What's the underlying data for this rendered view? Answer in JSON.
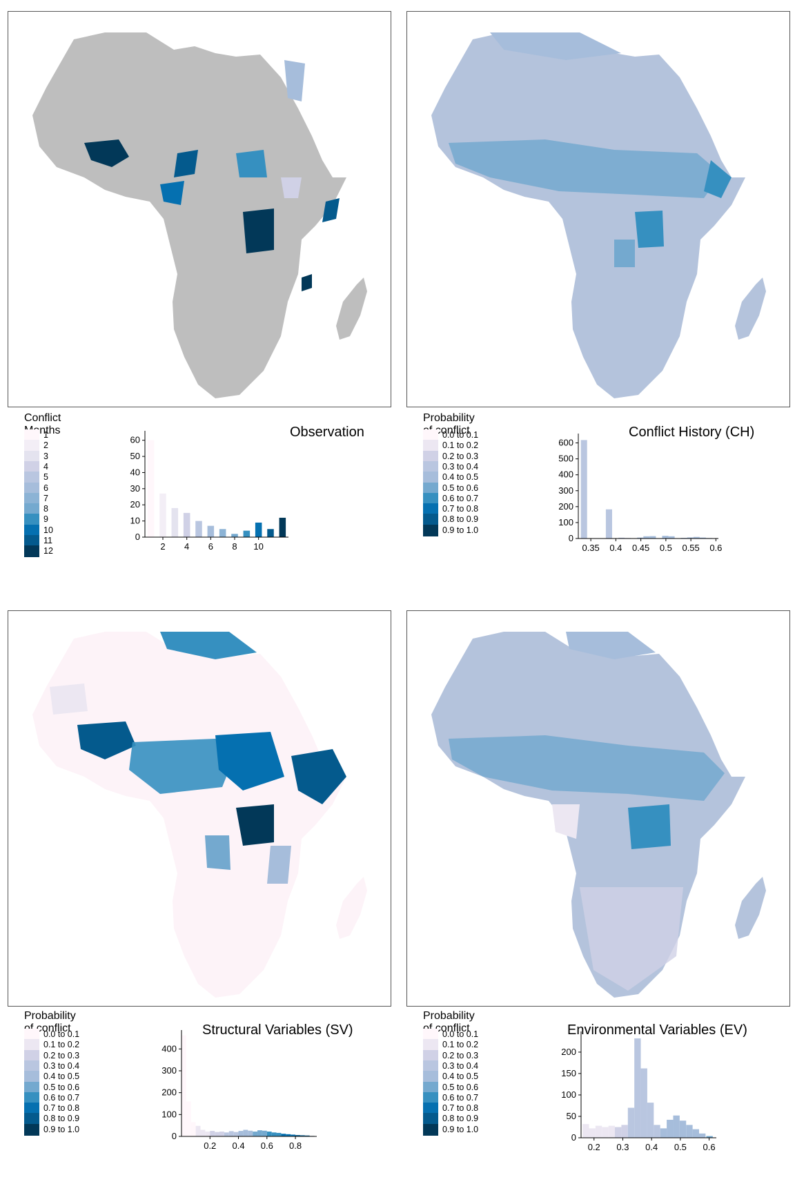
{
  "palette": [
    "#fff7fb",
    "#ece7f2",
    "#d0d1e6",
    "#a6bddb",
    "#74a9cf",
    "#3690c0",
    "#0570b0",
    "#045a8d",
    "#023858"
  ],
  "land_base_colors": {
    "observation": "#bebebe",
    "ch": "#b4c3dc",
    "sv": "#fdf3f8",
    "ev": "#b4c3dc"
  },
  "panels": [
    {
      "id": "observation",
      "legend_title": "Conflict Months",
      "legend_labels": [
        "1",
        "2",
        "3",
        "4",
        "5",
        "6",
        "7",
        "8",
        "9",
        "10",
        "11",
        "12"
      ],
      "legend_colors": [
        "#fff7fb",
        "#f3eef6",
        "#e4e3ef",
        "#d0d1e6",
        "#b9c6e0",
        "#a6bddb",
        "#8cb3d5",
        "#74a9cf",
        "#3690c0",
        "#0570b0",
        "#045a8d",
        "#023858"
      ]
    },
    {
      "id": "ch",
      "legend_title": "Probability of conflict",
      "legend_labels": [
        "0.0 to 0.1",
        "0.1 to 0.2",
        "0.2 to 0.3",
        "0.3 to 0.4",
        "0.4 to 0.5",
        "0.5 to 0.6",
        "0.6 to 0.7",
        "0.7 to 0.8",
        "0.8 to 0.9",
        "0.9 to 1.0"
      ],
      "legend_colors": [
        "#fff7fb",
        "#ece7f2",
        "#d0d1e6",
        "#b9c6e0",
        "#a6bddb",
        "#74a9cf",
        "#3690c0",
        "#0570b0",
        "#045a8d",
        "#023858"
      ]
    },
    {
      "id": "sv",
      "legend_title": "Probability of conflict",
      "legend_labels": [
        "0.0 to 0.1",
        "0.1 to 0.2",
        "0.2 to 0.3",
        "0.3 to 0.4",
        "0.4 to 0.5",
        "0.5 to 0.6",
        "0.6 to 0.7",
        "0.7 to 0.8",
        "0.8 to 0.9",
        "0.9 to 1.0"
      ],
      "legend_colors": [
        "#fff7fb",
        "#ece7f2",
        "#d0d1e6",
        "#b9c6e0",
        "#a6bddb",
        "#74a9cf",
        "#3690c0",
        "#0570b0",
        "#045a8d",
        "#023858"
      ]
    },
    {
      "id": "ev",
      "legend_title": "Probability of conflict",
      "legend_labels": [
        "0.0 to 0.1",
        "0.1 to 0.2",
        "0.2 to 0.3",
        "0.3 to 0.4",
        "0.4 to 0.5",
        "0.5 to 0.6",
        "0.6 to 0.7",
        "0.7 to 0.8",
        "0.8 to 0.9",
        "0.9 to 1.0"
      ],
      "legend_colors": [
        "#fff7fb",
        "#ece7f2",
        "#d0d1e6",
        "#b9c6e0",
        "#a6bddb",
        "#74a9cf",
        "#3690c0",
        "#0570b0",
        "#045a8d",
        "#023858"
      ]
    }
  ],
  "chart_data": [
    {
      "id": "observation",
      "type": "bar",
      "title": "Observation",
      "xlabel": "",
      "ylabel": "",
      "x": [
        1,
        2,
        3,
        4,
        5,
        6,
        7,
        8,
        9,
        10,
        11,
        12
      ],
      "values": [
        60,
        27,
        18,
        15,
        10,
        7,
        5,
        2,
        4,
        9,
        5,
        12
      ],
      "colors": [
        "#fff7fb",
        "#f3eef6",
        "#e4e3ef",
        "#d0d1e6",
        "#b9c6e0",
        "#a6bddb",
        "#8cb3d5",
        "#74a9cf",
        "#3690c0",
        "#0570b0",
        "#045a8d",
        "#023858"
      ],
      "xlim": [
        0.5,
        12.5
      ],
      "ylim": [
        0,
        65
      ],
      "xticks": [
        2,
        4,
        6,
        8,
        10
      ],
      "yticks": [
        0,
        10,
        20,
        30,
        40,
        50,
        60
      ],
      "grid": false
    },
    {
      "id": "ch",
      "type": "bar",
      "title": "Conflict History (CH)",
      "xlabel": "",
      "ylabel": "",
      "bin_width": 0.0125,
      "x": [
        0.3363,
        0.3863,
        0.4113,
        0.4238,
        0.4488,
        0.4613,
        0.4738,
        0.4988,
        0.5113,
        0.5363,
        0.5488,
        0.5613,
        0.5738,
        0.5863
      ],
      "values": [
        618,
        183,
        5,
        3,
        6,
        14,
        15,
        17,
        14,
        4,
        7,
        10,
        6,
        3
      ],
      "colors": [
        "#b9c6e0",
        "#b9c6e0",
        "#b9c6e0",
        "#b9c6e0",
        "#a6bddb",
        "#a6bddb",
        "#a6bddb",
        "#a6bddb",
        "#a6bddb",
        "#a6bddb",
        "#a6bddb",
        "#a6bddb",
        "#a6bddb",
        "#a6bddb"
      ],
      "xlim": [
        0.325,
        0.605
      ],
      "ylim": [
        0,
        650
      ],
      "xticks": [
        0.35,
        0.4,
        0.45,
        0.5,
        0.55,
        0.6
      ],
      "xtick_labels": [
        "0.35",
        "0.4",
        "0.45",
        "0.5",
        "0.55",
        "0.6"
      ],
      "yticks": [
        0,
        100,
        200,
        300,
        400,
        500,
        600
      ],
      "grid": false
    },
    {
      "id": "sv",
      "type": "bar",
      "title": "Structural Variables (SV)",
      "xlabel": "",
      "ylabel": "",
      "bin_width": 0.0333,
      "x": [
        0.0167,
        0.05,
        0.0833,
        0.1167,
        0.15,
        0.1833,
        0.2167,
        0.25,
        0.2833,
        0.3167,
        0.35,
        0.3833,
        0.4167,
        0.45,
        0.4833,
        0.5167,
        0.55,
        0.5833,
        0.6167,
        0.65,
        0.6833,
        0.7167,
        0.75,
        0.7833,
        0.8167,
        0.85,
        0.8833,
        0.9167
      ],
      "values": [
        462,
        160,
        65,
        48,
        30,
        22,
        25,
        20,
        22,
        18,
        24,
        20,
        25,
        30,
        26,
        22,
        28,
        26,
        22,
        18,
        16,
        12,
        10,
        8,
        6,
        5,
        4,
        2
      ],
      "colors": [
        "#fff7fb",
        "#fff7fb",
        "#fff7fb",
        "#ece7f2",
        "#ece7f2",
        "#ece7f2",
        "#d0d1e6",
        "#d0d1e6",
        "#d0d1e6",
        "#b9c6e0",
        "#b9c6e0",
        "#b9c6e0",
        "#a6bddb",
        "#a6bddb",
        "#a6bddb",
        "#74a9cf",
        "#74a9cf",
        "#74a9cf",
        "#3690c0",
        "#3690c0",
        "#3690c0",
        "#0570b0",
        "#0570b0",
        "#0570b0",
        "#045a8d",
        "#045a8d",
        "#045a8d",
        "#023858"
      ],
      "xlim": [
        0.0,
        0.95
      ],
      "ylim": [
        0,
        480
      ],
      "xticks": [
        0.2,
        0.4,
        0.6,
        0.8
      ],
      "xtick_labels": [
        "0.2",
        "0.4",
        "0.6",
        "0.8"
      ],
      "yticks": [
        0,
        100,
        200,
        300,
        400
      ],
      "grid": false
    },
    {
      "id": "ev",
      "type": "bar",
      "title": "Environmental Variables (EV)",
      "xlabel": "",
      "ylabel": "",
      "bin_width": 0.0225,
      "x": [
        0.1713,
        0.1938,
        0.2163,
        0.2388,
        0.2613,
        0.2838,
        0.3063,
        0.3288,
        0.3513,
        0.3738,
        0.3963,
        0.4188,
        0.4413,
        0.4638,
        0.4863,
        0.5088,
        0.5313,
        0.5538,
        0.5763,
        0.6013
      ],
      "values": [
        32,
        22,
        28,
        25,
        28,
        25,
        30,
        70,
        232,
        162,
        82,
        30,
        22,
        42,
        52,
        40,
        30,
        20,
        10,
        4
      ],
      "colors": [
        "#ece7f2",
        "#ece7f2",
        "#ece7f2",
        "#ece7f2",
        "#ece7f2",
        "#d0d1e6",
        "#d0d1e6",
        "#b9c6e0",
        "#b9c6e0",
        "#b9c6e0",
        "#b9c6e0",
        "#b9c6e0",
        "#a6bddb",
        "#a6bddb",
        "#a6bddb",
        "#a6bddb",
        "#a6bddb",
        "#a6bddb",
        "#a6bddb",
        "#74a9cf"
      ],
      "xlim": [
        0.155,
        0.625
      ],
      "ylim": [
        0,
        245
      ],
      "xticks": [
        0.2,
        0.3,
        0.4,
        0.5,
        0.6
      ],
      "xtick_labels": [
        "0.2",
        "0.3",
        "0.4",
        "0.5",
        "0.6"
      ],
      "yticks": [
        0,
        50,
        100,
        150,
        200
      ],
      "grid": false
    }
  ]
}
